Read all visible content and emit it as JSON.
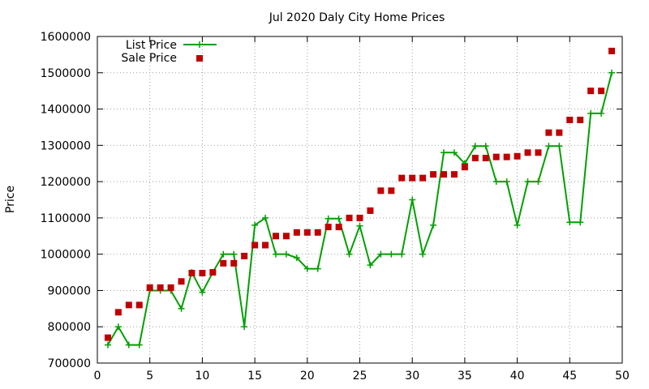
{
  "chart_data": {
    "type": "line",
    "title": "Jul 2020 Daly City Home Prices",
    "xlabel": "",
    "ylabel": "Price",
    "xlim": [
      0,
      50
    ],
    "ylim": [
      700000,
      1600000
    ],
    "xticks": [
      0,
      5,
      10,
      15,
      20,
      25,
      30,
      35,
      40,
      45,
      50
    ],
    "yticks": [
      700000,
      800000,
      900000,
      1000000,
      1100000,
      1200000,
      1300000,
      1400000,
      1500000,
      1600000
    ],
    "grid": true,
    "legend_position": "top-left",
    "series": [
      {
        "name": "List Price",
        "style": "line-with-plus-markers",
        "color": "#00a000",
        "x": [
          1,
          2,
          3,
          4,
          5,
          6,
          7,
          8,
          9,
          10,
          11,
          12,
          13,
          14,
          15,
          16,
          17,
          18,
          19,
          20,
          21,
          22,
          23,
          24,
          25,
          26,
          27,
          28,
          29,
          30,
          31,
          32,
          33,
          34,
          35,
          36,
          37,
          38,
          39,
          40,
          41,
          42,
          43,
          44,
          45,
          46,
          47,
          48,
          49
        ],
        "values": [
          750000,
          800000,
          750000,
          750000,
          900000,
          900000,
          900000,
          850000,
          950000,
          895000,
          950000,
          1000000,
          1000000,
          800000,
          1080000,
          1100000,
          1000000,
          1000000,
          990000,
          960000,
          960000,
          1098000,
          1098000,
          1000000,
          1078000,
          970000,
          1000000,
          1000000,
          1000000,
          1150000,
          1000000,
          1080000,
          1280000,
          1280000,
          1250000,
          1298000,
          1298000,
          1200000,
          1200000,
          1080000,
          1200000,
          1200000,
          1298000,
          1298000,
          1088000,
          1088000,
          1388000,
          1388000,
          1500000
        ]
      },
      {
        "name": "Sale Price",
        "style": "square-markers",
        "color": "#c00000",
        "x": [
          1,
          2,
          3,
          4,
          5,
          6,
          7,
          8,
          9,
          10,
          11,
          12,
          13,
          14,
          15,
          16,
          17,
          18,
          19,
          20,
          21,
          22,
          23,
          24,
          25,
          26,
          27,
          28,
          29,
          30,
          31,
          32,
          33,
          34,
          35,
          36,
          37,
          38,
          39,
          40,
          41,
          42,
          43,
          44,
          45,
          46,
          47,
          48,
          49
        ],
        "values": [
          770000,
          840000,
          860000,
          860000,
          908000,
          908000,
          908000,
          925000,
          948000,
          948000,
          950000,
          975000,
          975000,
          995000,
          1025000,
          1025000,
          1050000,
          1050000,
          1060000,
          1060000,
          1060000,
          1075000,
          1075000,
          1100000,
          1100000,
          1120000,
          1175000,
          1175000,
          1210000,
          1210000,
          1210000,
          1220000,
          1220000,
          1220000,
          1240000,
          1265000,
          1265000,
          1268000,
          1268000,
          1270000,
          1280000,
          1280000,
          1335000,
          1335000,
          1370000,
          1370000,
          1450000,
          1450000,
          1560000
        ]
      }
    ]
  }
}
